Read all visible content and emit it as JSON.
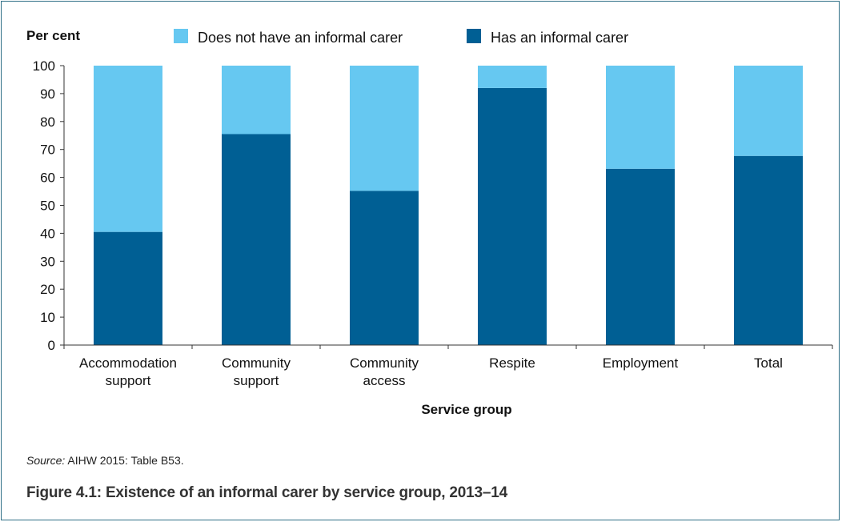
{
  "chart_data": {
    "type": "bar",
    "stacked": true,
    "ylabel": "Per cent",
    "xlabel": "Service group",
    "ylim": [
      0,
      100
    ],
    "yticks": [
      "0",
      "10",
      "20",
      "30",
      "40",
      "50",
      "60",
      "70",
      "80",
      "90",
      "100"
    ],
    "categories": [
      [
        "Accommodation",
        "support"
      ],
      [
        "Community",
        "support"
      ],
      [
        "Community",
        "access"
      ],
      [
        "Respite"
      ],
      [
        "Employment"
      ],
      [
        "Total"
      ]
    ],
    "series": [
      {
        "name": "Has an informal carer",
        "color": "#005f94",
        "values": [
          40.5,
          75.5,
          55.2,
          92.0,
          63.1,
          67.7
        ]
      },
      {
        "name": "Does not have an informal carer",
        "color": "#66c8f1",
        "values": [
          59.5,
          24.5,
          44.8,
          8.0,
          36.9,
          32.3
        ]
      }
    ],
    "legend": {
      "placement": "top",
      "order": [
        "Does not have an informal carer",
        "Has an informal carer"
      ]
    },
    "grid": false
  },
  "source": {
    "label": "Source:",
    "text": " AIHW 2015: Table B53."
  },
  "caption": "Figure 4.1: Existence of an informal carer by service group, 2013–14"
}
